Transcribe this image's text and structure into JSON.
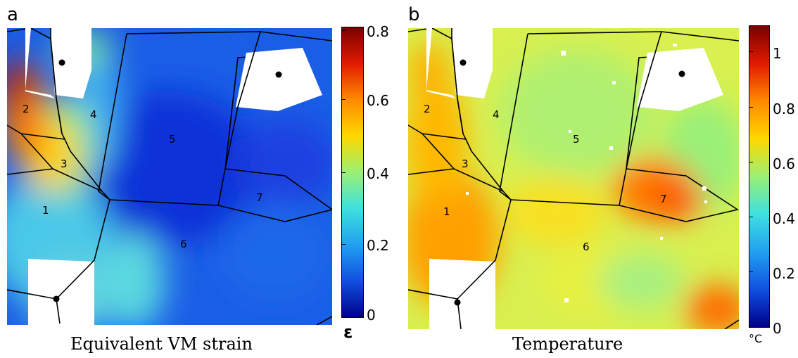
{
  "panels": [
    {
      "letter": "a",
      "caption": "Equivalent VM strain",
      "colorbar": {
        "unit": "ε",
        "range": [
          0,
          0.8
        ],
        "ticks": [
          "0.8",
          "0.6",
          "0.4",
          "0.2",
          "0"
        ],
        "colormap": [
          "#7a0000",
          "#e01b00",
          "#ff8a00",
          "#ffd800",
          "#9af074",
          "#3ee0e0",
          "#22a0f0",
          "#1050e0",
          "#00008a"
        ]
      },
      "grain_labels": [
        "1",
        "2",
        "3",
        "4",
        "5",
        "6",
        "7"
      ]
    },
    {
      "letter": "b",
      "caption": "Temperature",
      "colorbar": {
        "unit": "°C",
        "range": [
          0,
          1.1
        ],
        "ticks": [
          "1",
          "0.8",
          "0.6",
          "0.4",
          "0.2",
          "0"
        ],
        "colormap": [
          "#7a0000",
          "#e01b00",
          "#ff8a00",
          "#ffd800",
          "#9af074",
          "#3ee0e0",
          "#22a0f0",
          "#1050e0",
          "#00008a"
        ]
      },
      "grain_labels": [
        "1",
        "2",
        "3",
        "4",
        "5",
        "6",
        "7"
      ]
    }
  ]
}
